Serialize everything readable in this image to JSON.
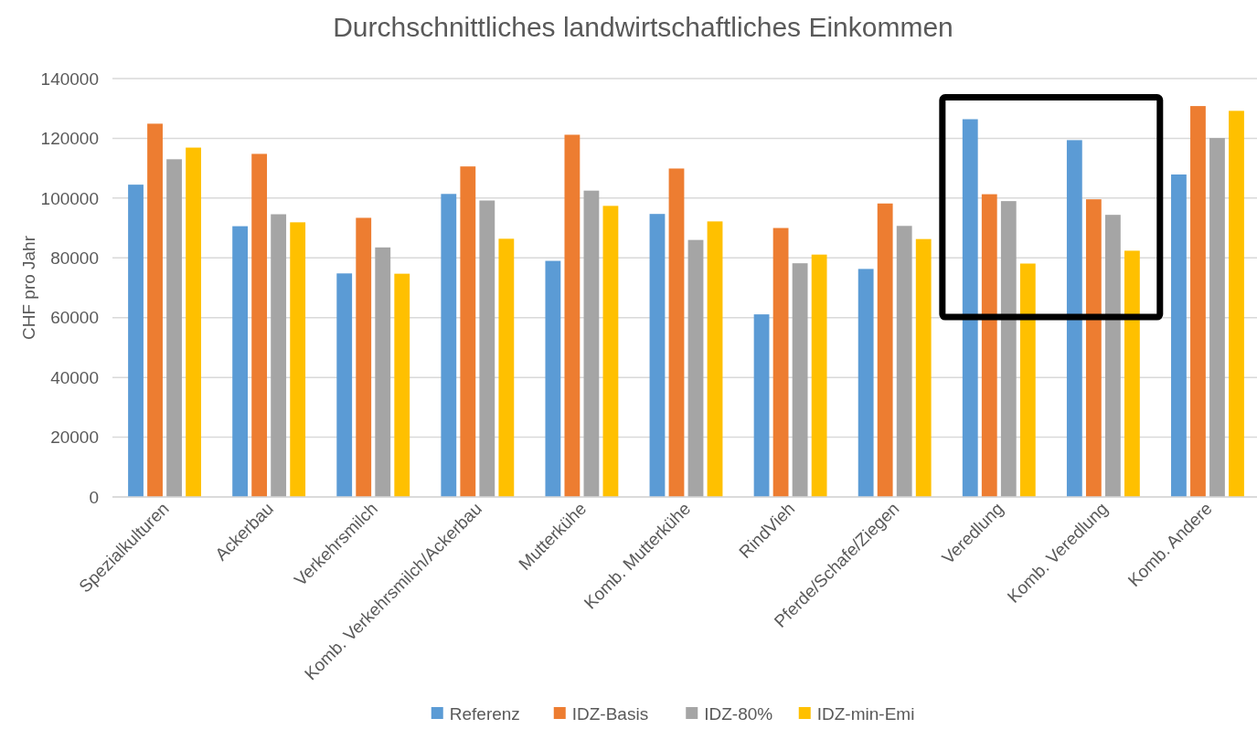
{
  "chart_data": {
    "type": "bar",
    "title": "Durchschnittliches landwirtschaftliches Einkommen",
    "ylabel": "CHF pro Jahr",
    "categories": [
      "Spezialkulturen",
      "Ackerbau",
      "Verkehrsmilch",
      "Komb. Verkehrsmilch/Ackerbau",
      "Mutterkühe",
      "Komb. Mutterkühe",
      "RindVieh",
      "Pferde/Schafe/Ziegen",
      "Veredlung",
      "Komb. Veredlung",
      "Komb. Andere"
    ],
    "series": [
      {
        "name": "Referenz",
        "color": "#5b9bd5",
        "values": [
          104500,
          90600,
          74800,
          101400,
          79000,
          94700,
          61100,
          76300,
          126400,
          119400,
          107900
        ]
      },
      {
        "name": "IDZ-Basis",
        "color": "#ed7d31",
        "values": [
          124900,
          114800,
          93400,
          110600,
          121200,
          109900,
          90000,
          98200,
          101300,
          99600,
          130800
        ]
      },
      {
        "name": "IDZ-80%",
        "color": "#a5a5a5",
        "values": [
          113000,
          94600,
          83500,
          99200,
          102500,
          86000,
          78200,
          90700,
          99000,
          94400,
          120100
        ]
      },
      {
        "name": "IDZ-min-Emi",
        "color": "#ffc000",
        "values": [
          116900,
          91900,
          74700,
          86400,
          97400,
          92200,
          81100,
          86300,
          78100,
          82400,
          129200
        ]
      }
    ],
    "ylim": [
      0,
      140000
    ],
    "yticks": [
      0,
      20000,
      40000,
      60000,
      80000,
      100000,
      120000,
      140000
    ],
    "grid": "y",
    "legend": "bottom"
  }
}
